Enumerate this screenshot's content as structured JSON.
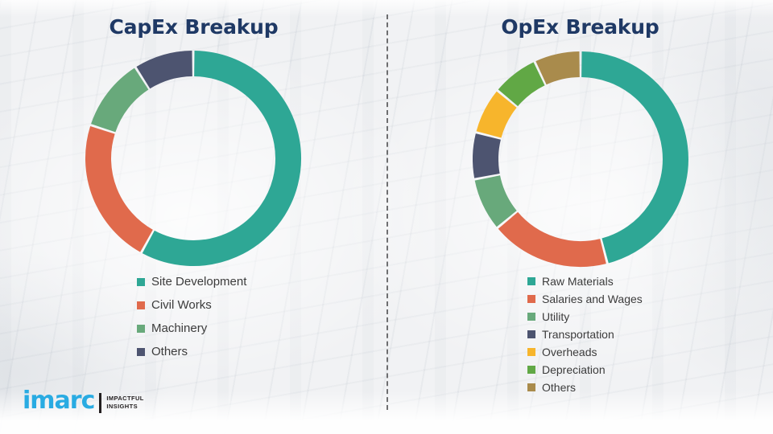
{
  "page": {
    "background_color": "#f1f2f4",
    "divider_style": "vertical-dashed",
    "divider_color": "#58585a"
  },
  "chart_data": [
    {
      "type": "pie",
      "donut": true,
      "title": "CapEx Breakup",
      "title_color": "#1f3965",
      "legend_position": "bottom",
      "values_estimated_from_angles": true,
      "series": [
        {
          "label": "Site Development",
          "value": 58,
          "color": "#2ea795"
        },
        {
          "label": "Civil Works",
          "value": 22,
          "color": "#e06a4c"
        },
        {
          "label": "Machinery",
          "value": 11,
          "color": "#68a97b"
        },
        {
          "label": "Others",
          "value": 9,
          "color": "#4d5470"
        }
      ]
    },
    {
      "type": "pie",
      "donut": true,
      "title": "OpEx Breakup",
      "title_color": "#1f3965",
      "legend_position": "bottom",
      "values_estimated_from_angles": true,
      "series": [
        {
          "label": "Raw Materials",
          "value": 46,
          "color": "#2ea795"
        },
        {
          "label": "Salaries and Wages",
          "value": 18,
          "color": "#e06a4c"
        },
        {
          "label": "Utility",
          "value": 8,
          "color": "#68a97b"
        },
        {
          "label": "Transportation",
          "value": 7,
          "color": "#4d5470"
        },
        {
          "label": "Overheads",
          "value": 7,
          "color": "#f7b52c"
        },
        {
          "label": "Depreciation",
          "value": 7,
          "color": "#61a845"
        },
        {
          "label": "Others",
          "value": 7,
          "color": "#a98b4c"
        }
      ]
    }
  ],
  "branding": {
    "logo_text": "imarc",
    "logo_color": "#29abe2",
    "tagline_line1": "IMPACTFUL",
    "tagline_line2": "INSIGHTS"
  }
}
